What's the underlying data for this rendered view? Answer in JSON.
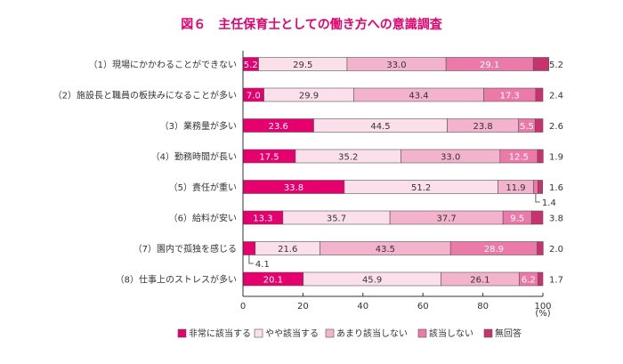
{
  "chart_data": {
    "type": "bar",
    "stacked": true,
    "orientation": "horizontal",
    "title": "図６　主任保育士としての働き方への意識調査",
    "unit_label": "(%)",
    "xlim": [
      0,
      100
    ],
    "xticks": [
      0,
      20,
      40,
      60,
      80,
      100
    ],
    "grid": false,
    "legend_position": "bottom",
    "categories": [
      "（1）現場にかかわることができない",
      "（2）施設長と職員の板挟みになることが多い",
      "（3）業務量が多い",
      "（4）勤務時間が長い",
      "（5）責任が重い",
      "（6）給料が安い",
      "（7）園内で孤独を感じる",
      "（8）仕事上のストレスが多い"
    ],
    "series": [
      {
        "name": "非常に該当する",
        "color": "#e5006e",
        "label_color": "#ffffff",
        "values": [
          5.2,
          7.0,
          23.6,
          17.5,
          33.8,
          13.3,
          4.1,
          20.1
        ]
      },
      {
        "name": "やや該当する",
        "color": "#fbe0ec",
        "label_color": "#333333",
        "values": [
          29.5,
          29.9,
          44.5,
          35.2,
          51.2,
          35.7,
          21.6,
          45.9
        ]
      },
      {
        "name": "あまり該当しない",
        "color": "#f3b3cd",
        "label_color": "#333333",
        "values": [
          33.0,
          43.4,
          23.8,
          33.0,
          11.9,
          37.7,
          43.5,
          26.1
        ]
      },
      {
        "name": "該当しない",
        "color": "#ec7aa9",
        "label_color": "#ffffff",
        "values": [
          29.1,
          17.3,
          5.5,
          12.5,
          1.4,
          9.5,
          28.9,
          6.2
        ]
      },
      {
        "name": "無回答",
        "color": "#c8326f",
        "label_color": "#333333",
        "values": [
          5.2,
          2.4,
          2.6,
          1.9,
          1.6,
          3.8,
          2.0,
          1.7
        ]
      }
    ],
    "callouts": [
      {
        "row": 4,
        "series": 3,
        "text": "1.4"
      },
      {
        "row": 6,
        "series": 0,
        "text": "4.1"
      }
    ]
  }
}
